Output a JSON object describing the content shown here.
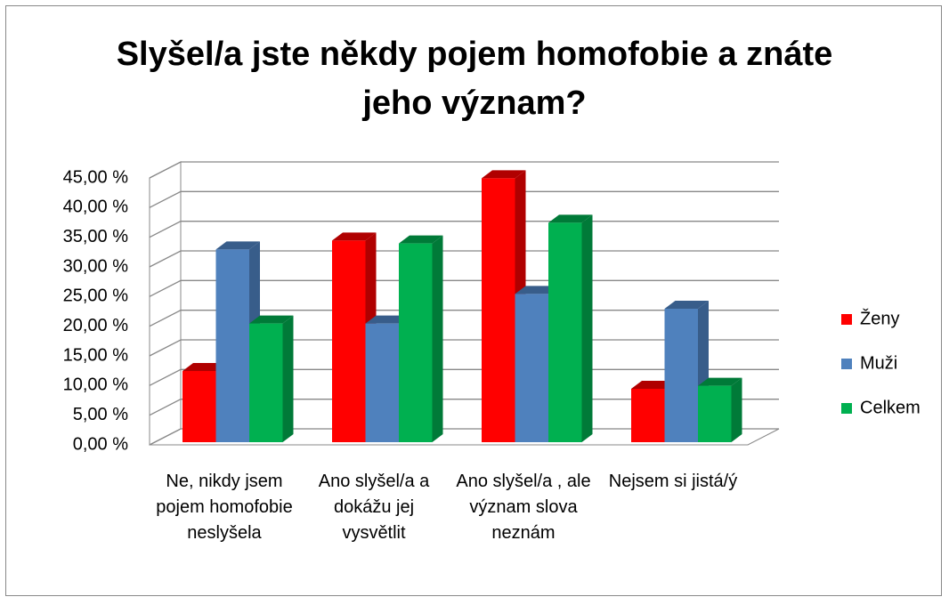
{
  "chart_data": {
    "type": "bar3d",
    "title": "Slyšel/a jste někdy pojem homofobie a znáte jeho význam?",
    "categories": [
      "Ne, nikdy jsem pojem homofobie neslyšela",
      "Ano slyšel/a a dokážu jej vysvětlit",
      "Ano slyšel/a , ale význam slova neznám",
      "Nejsem si jistá/ý"
    ],
    "series": [
      {
        "name": "Ženy",
        "color": "#ff0000",
        "side": "#b00000",
        "values": [
          12,
          34,
          44.5,
          9
        ]
      },
      {
        "name": "Muži",
        "color": "#4f81bd",
        "side": "#385d8a",
        "values": [
          32.5,
          20,
          25,
          22.5
        ]
      },
      {
        "name": "Celkem",
        "color": "#00b050",
        "side": "#007a38",
        "values": [
          20,
          33.5,
          37,
          9.5
        ]
      }
    ],
    "ylim": [
      0,
      45
    ],
    "yticks": [
      {
        "value": 0,
        "label": "0,00 %"
      },
      {
        "value": 5,
        "label": "5,00 %"
      },
      {
        "value": 10,
        "label": "10,00 %"
      },
      {
        "value": 15,
        "label": "15,00 %"
      },
      {
        "value": 20,
        "label": "20,00 %"
      },
      {
        "value": 25,
        "label": "25,00 %"
      },
      {
        "value": 30,
        "label": "30,00 %"
      },
      {
        "value": 35,
        "label": "35,00 %"
      },
      {
        "value": 40,
        "label": "40,00 %"
      },
      {
        "value": 45,
        "label": "45,00 %"
      }
    ],
    "grid": true,
    "legend": "right"
  }
}
